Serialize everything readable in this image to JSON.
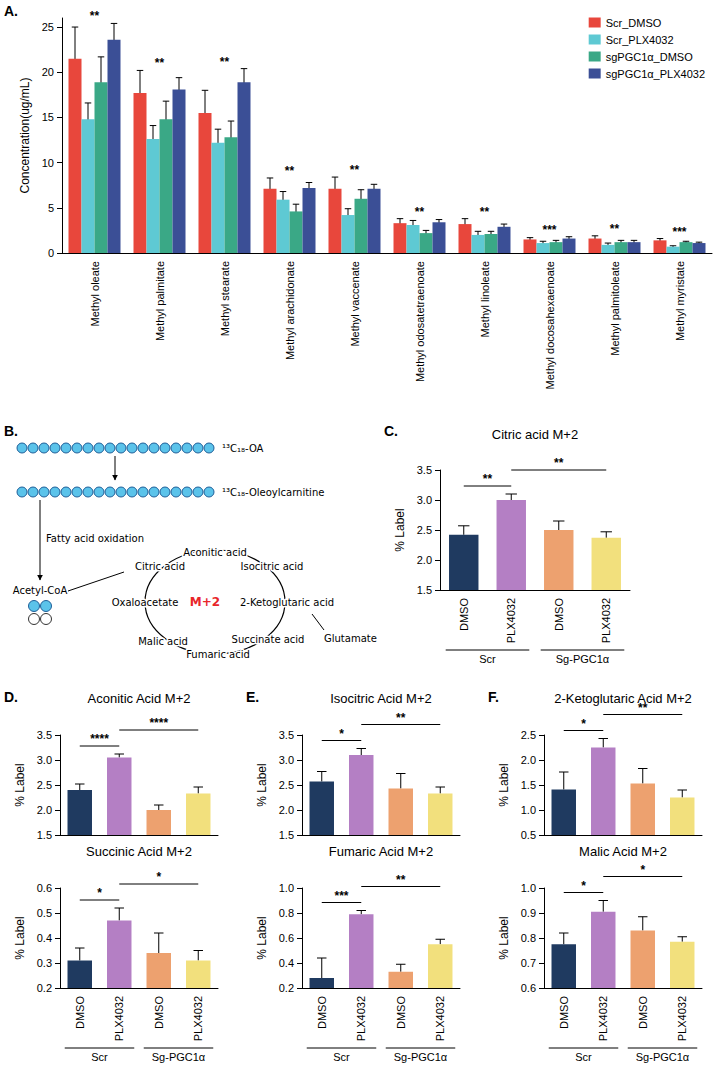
{
  "chart_data": [
    {
      "panel": "A.",
      "type": "bar",
      "categories": [
        "Methyl oleate",
        "Methyl palmitate",
        "Methyl stearate",
        "Methyl arachidonate",
        "Methyl vaccenate",
        "Methyl odosatetraenoate",
        "Methyl linoleate",
        "Methyl docosahexaenoate",
        "Methyl palmitoleate",
        "Methyl myristate"
      ],
      "y_label": "Concentration(ug/mL)",
      "ylim": [
        0,
        26
      ],
      "yticks": [
        0,
        5,
        10,
        15,
        20,
        25
      ],
      "legend": "upper right",
      "series": [
        {
          "name": "Scr_DMSO",
          "color": "#e8473c",
          "values": [
            21.5,
            17.7,
            15.5,
            7.1,
            7.1,
            3.3,
            3.2,
            1.5,
            1.6,
            1.4
          ],
          "error": [
            3.5,
            2.5,
            2.5,
            1.2,
            1.3,
            0.5,
            0.6,
            0.2,
            0.3,
            0.2
          ]
        },
        {
          "name": "Scr_PLX4032",
          "color": "#5ec9d3",
          "values": [
            14.8,
            12.6,
            12.2,
            5.9,
            4.2,
            3.1,
            2.0,
            1.1,
            0.9,
            0.7
          ],
          "error": [
            1.8,
            1.5,
            1.5,
            0.9,
            0.7,
            0.5,
            0.4,
            0.2,
            0.2,
            0.1
          ]
        },
        {
          "name": "sgPGC1α_DMSO",
          "color": "#3aa886",
          "values": [
            18.9,
            14.8,
            12.8,
            4.6,
            6.0,
            2.2,
            2.1,
            1.2,
            1.2,
            1.2
          ],
          "error": [
            2.8,
            2.0,
            1.8,
            0.8,
            1.0,
            0.3,
            0.3,
            0.2,
            0.2,
            0.1
          ]
        },
        {
          "name": "sgPGC1α_PLX4032",
          "color": "#3b4f96",
          "values": [
            23.6,
            18.1,
            18.9,
            7.2,
            7.1,
            3.4,
            2.9,
            1.6,
            1.2,
            1.1
          ],
          "error": [
            1.8,
            1.3,
            1.5,
            0.6,
            0.5,
            0.3,
            0.3,
            0.2,
            0.2,
            0.1
          ]
        }
      ],
      "significance": [
        "**",
        "**",
        "**",
        "**",
        "**",
        "**",
        "**",
        "***",
        "**",
        "***"
      ]
    },
    {
      "panel": "C.",
      "type": "bar",
      "title": "Citric acid M+2",
      "categories": [
        "DMSO",
        "PLX4032",
        "DMSO",
        "PLX4032"
      ],
      "groups": [
        "Scr",
        "Sg-PGC1α"
      ],
      "values": [
        2.42,
        3.0,
        2.5,
        2.37
      ],
      "error": [
        0.15,
        0.1,
        0.15,
        0.1
      ],
      "colors": [
        "#1f3a60",
        "#b47fc4",
        "#eda16f",
        "#f2e07d"
      ],
      "y_label": "% Label",
      "ylim": [
        1.5,
        3.5
      ],
      "yticks": [
        1.5,
        {
          "value": 2,
          "label": "2.0"
        },
        2.5,
        {
          "value": 3,
          "label": "3.0"
        },
        3.5
      ],
      "significance": [
        {
          "from": 0,
          "to": 1,
          "label": "**"
        },
        {
          "from": 1,
          "to": 3,
          "label": "**"
        }
      ]
    },
    {
      "panel": "D.",
      "type": "bar",
      "title": "Aconitic Acid M+2",
      "tick_labels": "y",
      "categories": [
        "DMSO",
        "PLX4032",
        "DMSO",
        "PLX4032"
      ],
      "values": [
        2.4,
        3.05,
        2.0,
        2.33
      ],
      "error": [
        0.12,
        0.07,
        0.1,
        0.13
      ],
      "colors": [
        "#1f3a60",
        "#b47fc4",
        "#eda16f",
        "#f2e07d"
      ],
      "y_label": "% Label",
      "ylim": [
        1.5,
        3.5
      ],
      "yticks": [
        1.5,
        {
          "value": 2,
          "label": "2.0"
        },
        2.5,
        {
          "value": 3,
          "label": "3.0"
        },
        3.5
      ],
      "significance": [
        {
          "from": 0,
          "to": 1,
          "label": "****"
        },
        {
          "from": 1,
          "to": 3,
          "label": "****"
        }
      ]
    },
    {
      "type": "bar",
      "title": "Succinic Acid M+2",
      "categories": [
        "DMSO",
        "PLX4032",
        "DMSO",
        "PLX4032"
      ],
      "groups": [
        "Scr",
        "Sg-PGC1α"
      ],
      "values": [
        0.31,
        0.47,
        0.34,
        0.31
      ],
      "error": [
        0.05,
        0.05,
        0.08,
        0.04
      ],
      "colors": [
        "#1f3a60",
        "#b47fc4",
        "#eda16f",
        "#f2e07d"
      ],
      "y_label": "% Label",
      "ylim": [
        0.2,
        0.6
      ],
      "yticks": [
        0.2,
        0.3,
        0.4,
        0.5,
        0.6
      ],
      "significance": [
        {
          "from": 0,
          "to": 1,
          "label": "*"
        },
        {
          "from": 1,
          "to": 3,
          "label": "*"
        }
      ]
    },
    {
      "panel": "E.",
      "type": "bar",
      "title": "Isocitric Acid M+2",
      "tick_labels": "y",
      "categories": [
        "DMSO",
        "PLX4032",
        "DMSO",
        "PLX4032"
      ],
      "values": [
        2.57,
        3.1,
        2.43,
        2.33
      ],
      "error": [
        0.2,
        0.13,
        0.3,
        0.13
      ],
      "colors": [
        "#1f3a60",
        "#b47fc4",
        "#eda16f",
        "#f2e07d"
      ],
      "y_label": "% Label",
      "ylim": [
        1.5,
        3.5
      ],
      "yticks": [
        1.5,
        {
          "value": 2,
          "label": "2.0"
        },
        2.5,
        {
          "value": 3,
          "label": "3.0"
        },
        3.5
      ],
      "significance": [
        {
          "from": 0,
          "to": 1,
          "label": "*"
        },
        {
          "from": 1,
          "to": 3,
          "label": "**"
        }
      ]
    },
    {
      "type": "bar",
      "title": "Fumaric Acid M+2",
      "categories": [
        "DMSO",
        "PLX4032",
        "DMSO",
        "PLX4032"
      ],
      "groups": [
        "Scr",
        "Sg-PGC1α"
      ],
      "values": [
        0.28,
        0.79,
        0.33,
        0.55
      ],
      "error": [
        0.16,
        0.03,
        0.06,
        0.04
      ],
      "colors": [
        "#1f3a60",
        "#b47fc4",
        "#eda16f",
        "#f2e07d"
      ],
      "y_label": "% Label",
      "ylim": [
        0.2,
        1.0
      ],
      "yticks": [
        0.2,
        0.4,
        0.6,
        0.8,
        {
          "value": 1,
          "label": "1.0"
        }
      ],
      "significance": [
        {
          "from": 0,
          "to": 1,
          "label": "***"
        },
        {
          "from": 1,
          "to": 3,
          "label": "**"
        }
      ]
    },
    {
      "panel": "F.",
      "type": "bar",
      "title": "2-Ketoglutaric Acid M+2",
      "tick_labels": "y",
      "categories": [
        "DMSO",
        "PLX4032",
        "DMSO",
        "PLX4032"
      ],
      "values": [
        1.41,
        2.25,
        1.53,
        1.25
      ],
      "error": [
        0.35,
        0.18,
        0.3,
        0.15
      ],
      "colors": [
        "#1f3a60",
        "#b47fc4",
        "#eda16f",
        "#f2e07d"
      ],
      "y_label": "% Label",
      "ylim": [
        0.5,
        2.5
      ],
      "yticks": [
        0.5,
        {
          "value": 1,
          "label": "1.0"
        },
        1.5,
        {
          "value": 2,
          "label": "2.0"
        },
        2.5
      ],
      "significance": [
        {
          "from": 0,
          "to": 1,
          "label": "*"
        },
        {
          "from": 1,
          "to": 3,
          "label": "**"
        }
      ]
    },
    {
      "type": "bar",
      "title": "Malic Acid M+2",
      "categories": [
        "DMSO",
        "PLX4032",
        "DMSO",
        "PLX4032"
      ],
      "groups": [
        "Scr",
        "Sg-PGC1α"
      ],
      "values": [
        0.775,
        0.905,
        0.83,
        0.785
      ],
      "error": [
        0.045,
        0.045,
        0.055,
        0.02
      ],
      "colors": [
        "#1f3a60",
        "#b47fc4",
        "#eda16f",
        "#f2e07d"
      ],
      "y_label": "% Label",
      "ylim": [
        0.6,
        1.0
      ],
      "yticks": [
        0.6,
        0.7,
        0.8,
        0.9,
        {
          "value": 1,
          "label": "1.0"
        }
      ],
      "significance": [
        {
          "from": 0,
          "to": 1,
          "label": "*"
        },
        {
          "from": 1,
          "to": 3,
          "label": "*"
        }
      ]
    }
  ],
  "diagram": {
    "panel": "B.",
    "substrate": "¹³C₁₈-OA",
    "intermediate": "¹³C₁₈-Oleoylcarnitine",
    "process": "Fatty acid oxidation",
    "product": "Acetyl-CoA",
    "carbons": 18,
    "labeled_carbons": 2,
    "cycle": [
      "Citric acid",
      "Aconitic acid",
      "Isocitric acid",
      "2-Ketoglutaric acid",
      "Succinate acid",
      "Fumaric acid",
      "Malic acid",
      "Oxaloacetate"
    ],
    "branch": "Glutamate",
    "label": "M+2"
  }
}
